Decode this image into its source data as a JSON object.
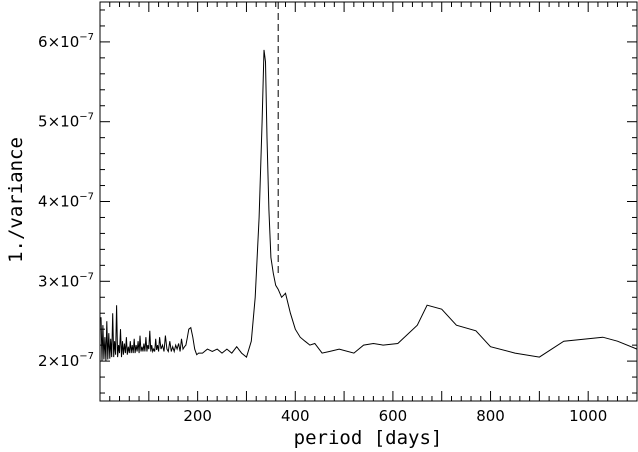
{
  "chart_data": {
    "type": "line",
    "title": "",
    "xlabel": "period [days]",
    "ylabel": "1./variance",
    "xlim": [
      0,
      1100
    ],
    "ylim": [
      1.5e-07,
      6.5e-07
    ],
    "xticks": [
      {
        "value": 200,
        "label": "200"
      },
      {
        "value": 400,
        "label": "400"
      },
      {
        "value": 600,
        "label": "600"
      },
      {
        "value": 800,
        "label": "800"
      },
      {
        "value": 1000,
        "label": "1000"
      }
    ],
    "yticks": [
      {
        "value": 2e-07,
        "mantissa": "2×10",
        "exponent": "−7"
      },
      {
        "value": 3e-07,
        "mantissa": "3×10",
        "exponent": "−7"
      },
      {
        "value": 4e-07,
        "mantissa": "4×10",
        "exponent": "−7"
      },
      {
        "value": 5e-07,
        "mantissa": "5×10",
        "exponent": "−7"
      },
      {
        "value": 6e-07,
        "mantissa": "6×10",
        "exponent": "−7"
      }
    ],
    "vline_x": 365,
    "series": [
      {
        "x": [
          2,
          4,
          6,
          8,
          10,
          12,
          14,
          16,
          18,
          20,
          22,
          24,
          26,
          28,
          30,
          32,
          34,
          36,
          38,
          40,
          42,
          44,
          46,
          48,
          50,
          52,
          54,
          56,
          58,
          60,
          62,
          64,
          66,
          68,
          70,
          72,
          74,
          76,
          78,
          80,
          82,
          84,
          86,
          88,
          90,
          92,
          94,
          96,
          98,
          100,
          102,
          104,
          106,
          108,
          110,
          112,
          114,
          116,
          118,
          120,
          122,
          125,
          128,
          131,
          134,
          137,
          140,
          143,
          146,
          149,
          152,
          155,
          158,
          161,
          164,
          167,
          170,
          173,
          176,
          179,
          182,
          186,
          190,
          194,
          198,
          202,
          210,
          220,
          230,
          240,
          250,
          260,
          270,
          280,
          290,
          300,
          310,
          318,
          326,
          332,
          336,
          339,
          342,
          346,
          350,
          355,
          360,
          365,
          372,
          380,
          390,
          400,
          410,
          420,
          430,
          440,
          455,
          470,
          490,
          520,
          540,
          560,
          580,
          610,
          650,
          670,
          700,
          730,
          770,
          800,
          850,
          900,
          950,
          1000,
          1030,
          1060,
          1100
        ],
        "y": [
          2.55e-07,
          2e-07,
          2.45e-07,
          2.02e-07,
          2.3e-07,
          2e-07,
          2.5e-07,
          2.02e-07,
          2.35e-07,
          2.03e-07,
          2.28e-07,
          2.05e-07,
          2.6e-07,
          2.05e-07,
          2.25e-07,
          2.08e-07,
          2.7e-07,
          2.05e-07,
          2.2e-07,
          2.1e-07,
          2.4e-07,
          2.05e-07,
          2.25e-07,
          2.08e-07,
          2.22e-07,
          2.1e-07,
          2.3e-07,
          2.08e-07,
          2.18e-07,
          2.1e-07,
          2.25e-07,
          2.1e-07,
          2.2e-07,
          2.1e-07,
          2.28e-07,
          2.1e-07,
          2.2e-07,
          2.12e-07,
          2.25e-07,
          2.1e-07,
          2.32e-07,
          2.12e-07,
          2.18e-07,
          2.12e-07,
          2.22e-07,
          2.12e-07,
          2.3e-07,
          2.12e-07,
          2.2e-07,
          2.15e-07,
          2.38e-07,
          2.12e-07,
          2.2e-07,
          2.12e-07,
          2.15e-07,
          2.12e-07,
          2.28e-07,
          2.14e-07,
          2.2e-07,
          2.12e-07,
          2.3e-07,
          2.15e-07,
          2.2e-07,
          2.12e-07,
          2.32e-07,
          2.15e-07,
          2.12e-07,
          2.25e-07,
          2.12e-07,
          2.18e-07,
          2.12e-07,
          2.2e-07,
          2.15e-07,
          2.22e-07,
          2.12e-07,
          2.28e-07,
          2.15e-07,
          2.18e-07,
          2.2e-07,
          2.3e-07,
          2.4e-07,
          2.42e-07,
          2.3e-07,
          2.15e-07,
          2.08e-07,
          2.1e-07,
          2.1e-07,
          2.15e-07,
          2.12e-07,
          2.15e-07,
          2.1e-07,
          2.15e-07,
          2.1e-07,
          2.18e-07,
          2.1e-07,
          2.05e-07,
          2.25e-07,
          2.8e-07,
          3.8e-07,
          5e-07,
          5.9e-07,
          5.75e-07,
          4.8e-07,
          3.9e-07,
          3.3e-07,
          3.1e-07,
          2.95e-07,
          2.9e-07,
          2.8e-07,
          2.85e-07,
          2.6e-07,
          2.4e-07,
          2.3e-07,
          2.25e-07,
          2.2e-07,
          2.22e-07,
          2.1e-07,
          2.12e-07,
          2.15e-07,
          2.1e-07,
          2.2e-07,
          2.22e-07,
          2.2e-07,
          2.22e-07,
          2.45e-07,
          2.7e-07,
          2.65e-07,
          2.45e-07,
          2.38e-07,
          2.18e-07,
          2.1e-07,
          2.05e-07,
          2.25e-07,
          2.28e-07,
          2.3e-07,
          2.25e-07,
          2.15e-07
        ]
      }
    ]
  }
}
